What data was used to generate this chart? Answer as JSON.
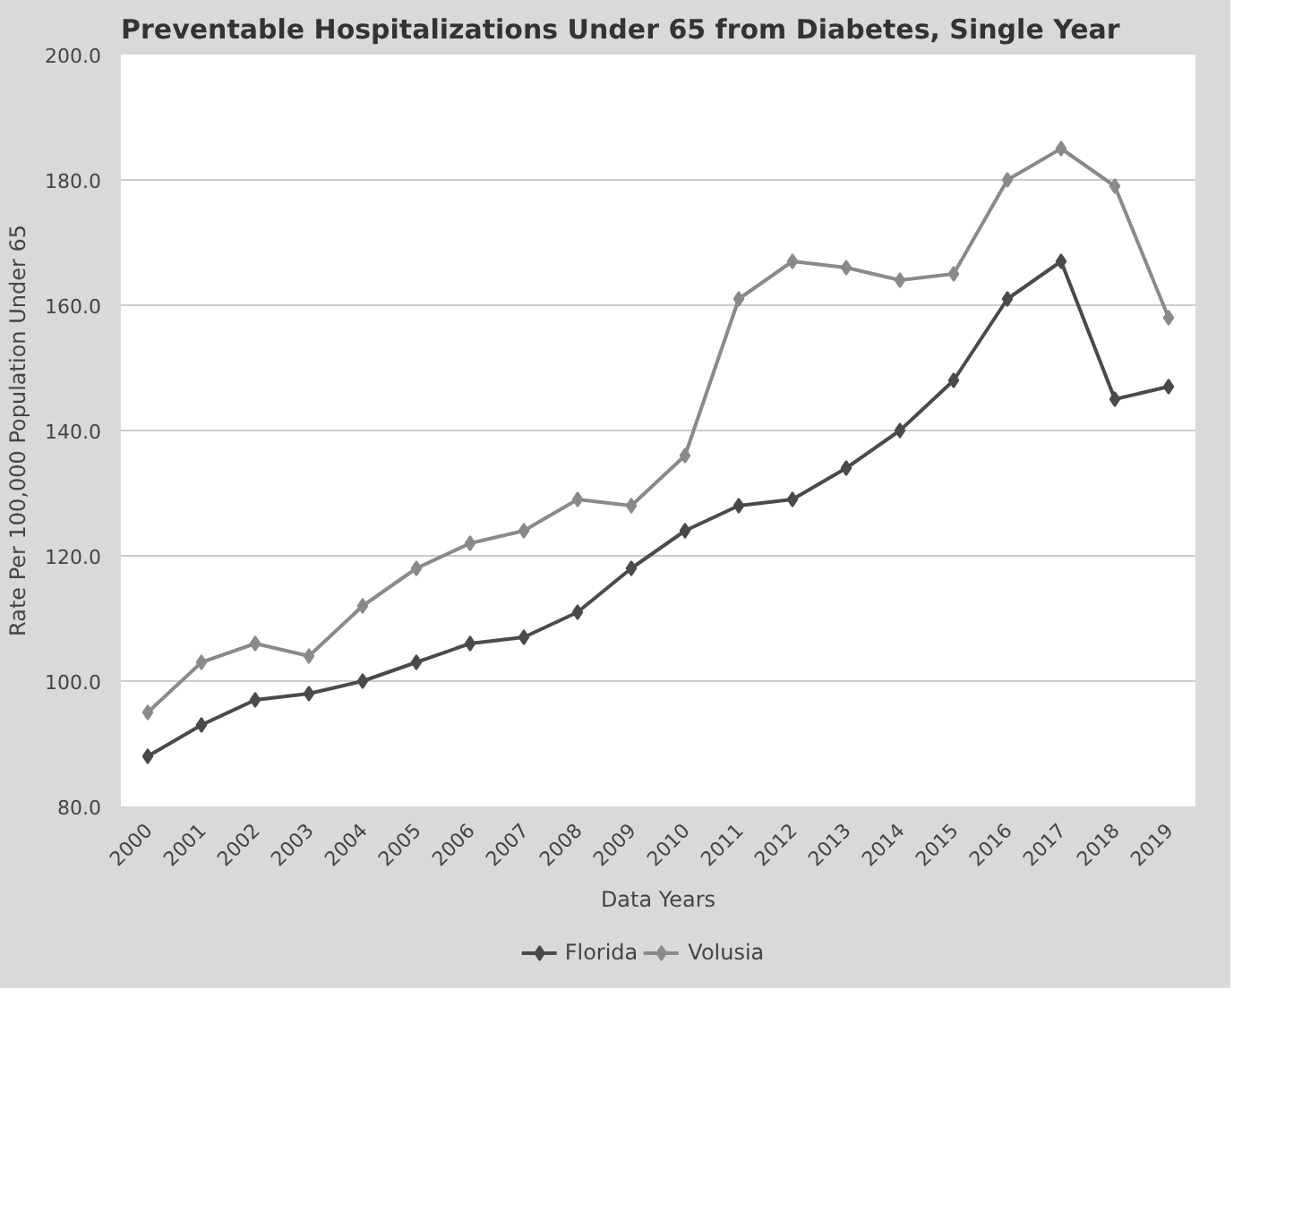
{
  "chart_data": {
    "type": "line",
    "title": "Preventable Hospitalizations Under 65 from Diabetes, Single Year",
    "xlabel": "Data Years",
    "ylabel": "Rate Per 100,000 Population Under 65",
    "categories": [
      "2000",
      "2001",
      "2002",
      "2003",
      "2004",
      "2005",
      "2006",
      "2007",
      "2008",
      "2009",
      "2010",
      "2011",
      "2012",
      "2013",
      "2014",
      "2015",
      "2016",
      "2017",
      "2018",
      "2019"
    ],
    "series": [
      {
        "name": "Florida",
        "color": "#4a4a4a",
        "values": [
          88,
          93,
          97,
          98,
          100,
          103,
          106,
          107,
          111,
          118,
          124,
          128,
          129,
          134,
          140,
          148,
          161,
          167,
          145,
          147
        ]
      },
      {
        "name": "Volusia",
        "color": "#8a8a8a",
        "values": [
          95,
          103,
          106,
          104,
          112,
          118,
          122,
          124,
          129,
          128,
          136,
          161,
          167,
          166,
          164,
          165,
          180,
          185,
          179,
          158
        ]
      }
    ],
    "ylim": [
      80,
      200
    ],
    "yticks": [
      {
        "value": 80,
        "label": "80.0"
      },
      {
        "value": 100,
        "label": "100.0"
      },
      {
        "value": 120,
        "label": "120.0"
      },
      {
        "value": 140,
        "label": "140.0"
      },
      {
        "value": 160,
        "label": "160.0"
      },
      {
        "value": 180,
        "label": "180.0"
      },
      {
        "value": 200,
        "label": "200.0"
      }
    ],
    "grid": "y",
    "legend": "bottom",
    "marker": "diamond",
    "line_style": "solid"
  }
}
